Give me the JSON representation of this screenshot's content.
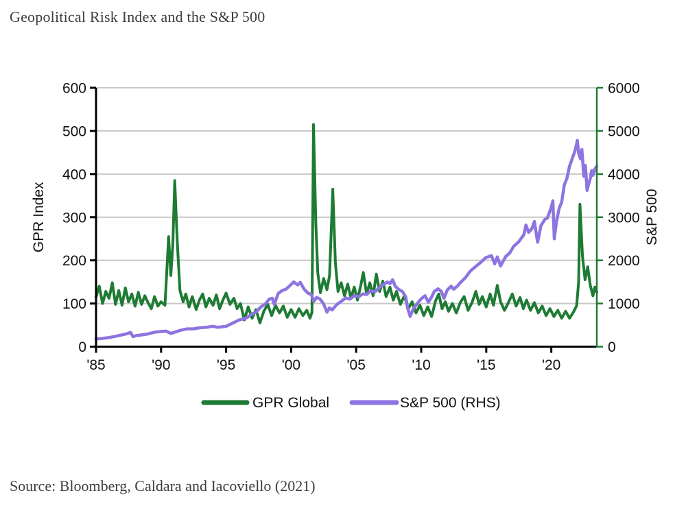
{
  "header": {
    "title": "Geopolitical Risk Index and the S&P 500"
  },
  "footer": {
    "source": "Source: Bloomberg, Caldara and Iacoviello (2021)"
  },
  "chart_data": {
    "type": "line",
    "title": "Geopolitical Risk Index and the S&P 500",
    "x_axis": {
      "range": [
        1985,
        2023.5
      ],
      "tick_years": [
        1985,
        1990,
        1995,
        2000,
        2005,
        2010,
        2015,
        2020
      ],
      "tick_labels": [
        "'85",
        "'90",
        "'95",
        "'00",
        "'05",
        "'10",
        "'15",
        "'20"
      ]
    },
    "left_axis": {
      "label": "GPR Index",
      "range": [
        0,
        600
      ],
      "ticks": [
        0,
        100,
        200,
        300,
        400,
        500,
        600
      ]
    },
    "right_axis": {
      "label": "S&P 500",
      "range": [
        0,
        6000
      ],
      "ticks": [
        0,
        1000,
        2000,
        3000,
        4000,
        5000,
        6000
      ]
    },
    "grid": true,
    "style": {
      "grid_color": "#c7c7c7",
      "spine_color": "#000000",
      "right_spine_color": "#1e7b33",
      "text_color": "#111111",
      "title_color": "#3d3d3d"
    },
    "legend": {
      "position": "bottom",
      "items": [
        {
          "label": "GPR Global",
          "color": "#1e7b33"
        },
        {
          "label": "S&P 500 (RHS)",
          "color": "#8d74e0"
        }
      ]
    },
    "series": [
      {
        "name": "GPR Global",
        "axis": "left",
        "color": "#1e7b33",
        "width": 4,
        "points": [
          [
            1985.0,
            115
          ],
          [
            1985.25,
            140
          ],
          [
            1985.5,
            100
          ],
          [
            1985.75,
            128
          ],
          [
            1986.0,
            112
          ],
          [
            1986.25,
            148
          ],
          [
            1986.5,
            98
          ],
          [
            1986.75,
            130
          ],
          [
            1987.0,
            96
          ],
          [
            1987.25,
            136
          ],
          [
            1987.5,
            104
          ],
          [
            1987.75,
            122
          ],
          [
            1988.0,
            94
          ],
          [
            1988.25,
            126
          ],
          [
            1988.5,
            98
          ],
          [
            1988.75,
            118
          ],
          [
            1989.0,
            102
          ],
          [
            1989.25,
            88
          ],
          [
            1989.5,
            116
          ],
          [
            1989.75,
            94
          ],
          [
            1990.0,
            104
          ],
          [
            1990.3,
            96
          ],
          [
            1990.58,
            255
          ],
          [
            1990.75,
            165
          ],
          [
            1990.9,
            235
          ],
          [
            1991.05,
            385
          ],
          [
            1991.25,
            240
          ],
          [
            1991.45,
            130
          ],
          [
            1991.7,
            104
          ],
          [
            1991.9,
            122
          ],
          [
            1992.15,
            92
          ],
          [
            1992.4,
            116
          ],
          [
            1992.7,
            86
          ],
          [
            1992.95,
            108
          ],
          [
            1993.2,
            122
          ],
          [
            1993.45,
            92
          ],
          [
            1993.7,
            112
          ],
          [
            1994.0,
            96
          ],
          [
            1994.25,
            120
          ],
          [
            1994.5,
            88
          ],
          [
            1994.75,
            108
          ],
          [
            1995.0,
            124
          ],
          [
            1995.3,
            98
          ],
          [
            1995.6,
            112
          ],
          [
            1995.85,
            88
          ],
          [
            1996.1,
            100
          ],
          [
            1996.4,
            62
          ],
          [
            1996.7,
            92
          ],
          [
            1997.0,
            66
          ],
          [
            1997.3,
            86
          ],
          [
            1997.6,
            55
          ],
          [
            1997.9,
            82
          ],
          [
            1998.2,
            98
          ],
          [
            1998.5,
            72
          ],
          [
            1998.8,
            96
          ],
          [
            1999.1,
            78
          ],
          [
            1999.4,
            94
          ],
          [
            1999.7,
            68
          ],
          [
            2000.0,
            86
          ],
          [
            2000.3,
            68
          ],
          [
            2000.6,
            88
          ],
          [
            2000.9,
            72
          ],
          [
            2001.2,
            84
          ],
          [
            2001.45,
            66
          ],
          [
            2001.6,
            80
          ],
          [
            2001.72,
            515
          ],
          [
            2001.9,
            285
          ],
          [
            2002.05,
            170
          ],
          [
            2002.25,
            125
          ],
          [
            2002.5,
            158
          ],
          [
            2002.75,
            132
          ],
          [
            2002.95,
            165
          ],
          [
            2003.2,
            365
          ],
          [
            2003.4,
            195
          ],
          [
            2003.6,
            128
          ],
          [
            2003.85,
            148
          ],
          [
            2004.1,
            118
          ],
          [
            2004.35,
            145
          ],
          [
            2004.6,
            112
          ],
          [
            2004.85,
            138
          ],
          [
            2005.1,
            108
          ],
          [
            2005.35,
            142
          ],
          [
            2005.55,
            172
          ],
          [
            2005.8,
            122
          ],
          [
            2006.05,
            148
          ],
          [
            2006.3,
            118
          ],
          [
            2006.55,
            168
          ],
          [
            2006.8,
            128
          ],
          [
            2007.05,
            152
          ],
          [
            2007.3,
            116
          ],
          [
            2007.6,
            138
          ],
          [
            2007.85,
            108
          ],
          [
            2008.1,
            128
          ],
          [
            2008.4,
            98
          ],
          [
            2008.7,
            118
          ],
          [
            2009.0,
            88
          ],
          [
            2009.3,
            104
          ],
          [
            2009.6,
            78
          ],
          [
            2009.9,
            96
          ],
          [
            2010.2,
            72
          ],
          [
            2010.5,
            92
          ],
          [
            2010.8,
            70
          ],
          [
            2011.1,
            106
          ],
          [
            2011.35,
            122
          ],
          [
            2011.6,
            88
          ],
          [
            2011.85,
            104
          ],
          [
            2012.1,
            82
          ],
          [
            2012.4,
            100
          ],
          [
            2012.7,
            78
          ],
          [
            2013.0,
            102
          ],
          [
            2013.3,
            116
          ],
          [
            2013.6,
            84
          ],
          [
            2013.9,
            102
          ],
          [
            2014.2,
            128
          ],
          [
            2014.45,
            98
          ],
          [
            2014.7,
            116
          ],
          [
            2015.0,
            92
          ],
          [
            2015.3,
            122
          ],
          [
            2015.55,
            96
          ],
          [
            2015.85,
            142
          ],
          [
            2016.1,
            104
          ],
          [
            2016.4,
            84
          ],
          [
            2016.7,
            102
          ],
          [
            2017.0,
            122
          ],
          [
            2017.3,
            94
          ],
          [
            2017.6,
            114
          ],
          [
            2017.85,
            88
          ],
          [
            2018.1,
            108
          ],
          [
            2018.4,
            84
          ],
          [
            2018.7,
            102
          ],
          [
            2019.0,
            78
          ],
          [
            2019.3,
            94
          ],
          [
            2019.6,
            72
          ],
          [
            2019.9,
            88
          ],
          [
            2020.2,
            70
          ],
          [
            2020.5,
            84
          ],
          [
            2020.8,
            66
          ],
          [
            2021.1,
            82
          ],
          [
            2021.4,
            66
          ],
          [
            2021.7,
            80
          ],
          [
            2021.95,
            95
          ],
          [
            2022.1,
            150
          ],
          [
            2022.2,
            330
          ],
          [
            2022.4,
            210
          ],
          [
            2022.6,
            155
          ],
          [
            2022.8,
            185
          ],
          [
            2023.0,
            142
          ],
          [
            2023.2,
            118
          ],
          [
            2023.35,
            138
          ],
          [
            2023.5,
            126
          ]
        ]
      },
      {
        "name": "S&P 500 (RHS)",
        "axis": "right",
        "color": "#8d74e0",
        "width": 4.5,
        "points": [
          [
            1985.0,
            180
          ],
          [
            1985.5,
            190
          ],
          [
            1986.0,
            212
          ],
          [
            1986.5,
            240
          ],
          [
            1987.0,
            274
          ],
          [
            1987.4,
            300
          ],
          [
            1987.65,
            330
          ],
          [
            1987.85,
            230
          ],
          [
            1988.1,
            258
          ],
          [
            1988.5,
            272
          ],
          [
            1989.0,
            294
          ],
          [
            1989.5,
            335
          ],
          [
            1990.0,
            352
          ],
          [
            1990.4,
            360
          ],
          [
            1990.75,
            306
          ],
          [
            1991.0,
            330
          ],
          [
            1991.5,
            380
          ],
          [
            1992.0,
            412
          ],
          [
            1992.5,
            414
          ],
          [
            1993.0,
            438
          ],
          [
            1993.5,
            450
          ],
          [
            1994.0,
            472
          ],
          [
            1994.35,
            448
          ],
          [
            1994.75,
            462
          ],
          [
            1995.0,
            470
          ],
          [
            1995.5,
            545
          ],
          [
            1996.0,
            618
          ],
          [
            1996.4,
            650
          ],
          [
            1996.6,
            670
          ],
          [
            1997.0,
            760
          ],
          [
            1997.3,
            800
          ],
          [
            1997.6,
            900
          ],
          [
            1997.8,
            947
          ],
          [
            1998.0,
            980
          ],
          [
            1998.3,
            1100
          ],
          [
            1998.55,
            1120
          ],
          [
            1998.7,
            980
          ],
          [
            1999.0,
            1230
          ],
          [
            1999.3,
            1300
          ],
          [
            1999.6,
            1330
          ],
          [
            1999.85,
            1400
          ],
          [
            2000.2,
            1500
          ],
          [
            2000.5,
            1430
          ],
          [
            2000.7,
            1490
          ],
          [
            2001.0,
            1330
          ],
          [
            2001.3,
            1240
          ],
          [
            2001.55,
            1210
          ],
          [
            2001.75,
            1050
          ],
          [
            2001.95,
            1140
          ],
          [
            2002.2,
            1110
          ],
          [
            2002.5,
            990
          ],
          [
            2002.75,
            800
          ],
          [
            2002.95,
            900
          ],
          [
            2003.15,
            850
          ],
          [
            2003.5,
            975
          ],
          [
            2003.85,
            1050
          ],
          [
            2004.2,
            1130
          ],
          [
            2004.5,
            1100
          ],
          [
            2004.85,
            1180
          ],
          [
            2005.2,
            1160
          ],
          [
            2005.5,
            1220
          ],
          [
            2005.8,
            1210
          ],
          [
            2006.1,
            1290
          ],
          [
            2006.45,
            1270
          ],
          [
            2006.8,
            1380
          ],
          [
            2007.1,
            1440
          ],
          [
            2007.4,
            1500
          ],
          [
            2007.6,
            1460
          ],
          [
            2007.8,
            1550
          ],
          [
            2008.0,
            1400
          ],
          [
            2008.3,
            1320
          ],
          [
            2008.55,
            1280
          ],
          [
            2008.8,
            1160
          ],
          [
            2008.95,
            900
          ],
          [
            2009.15,
            700
          ],
          [
            2009.4,
            880
          ],
          [
            2009.7,
            1000
          ],
          [
            2010.0,
            1110
          ],
          [
            2010.3,
            1180
          ],
          [
            2010.55,
            1030
          ],
          [
            2010.8,
            1150
          ],
          [
            2011.0,
            1280
          ],
          [
            2011.3,
            1340
          ],
          [
            2011.55,
            1280
          ],
          [
            2011.75,
            1120
          ],
          [
            2012.0,
            1310
          ],
          [
            2012.3,
            1400
          ],
          [
            2012.5,
            1330
          ],
          [
            2012.8,
            1410
          ],
          [
            2013.0,
            1480
          ],
          [
            2013.4,
            1600
          ],
          [
            2013.8,
            1760
          ],
          [
            2014.2,
            1860
          ],
          [
            2014.6,
            1960
          ],
          [
            2014.95,
            2060
          ],
          [
            2015.4,
            2110
          ],
          [
            2015.65,
            1920
          ],
          [
            2015.85,
            2080
          ],
          [
            2016.1,
            1870
          ],
          [
            2016.5,
            2090
          ],
          [
            2016.8,
            2170
          ],
          [
            2017.1,
            2320
          ],
          [
            2017.5,
            2430
          ],
          [
            2017.9,
            2600
          ],
          [
            2018.05,
            2820
          ],
          [
            2018.25,
            2650
          ],
          [
            2018.5,
            2730
          ],
          [
            2018.7,
            2900
          ],
          [
            2018.95,
            2420
          ],
          [
            2019.2,
            2800
          ],
          [
            2019.5,
            2950
          ],
          [
            2019.7,
            2980
          ],
          [
            2020.0,
            3230
          ],
          [
            2020.12,
            3380
          ],
          [
            2020.23,
            2500
          ],
          [
            2020.4,
            2900
          ],
          [
            2020.6,
            3200
          ],
          [
            2020.8,
            3350
          ],
          [
            2021.0,
            3750
          ],
          [
            2021.2,
            3900
          ],
          [
            2021.4,
            4180
          ],
          [
            2021.6,
            4350
          ],
          [
            2021.8,
            4520
          ],
          [
            2021.95,
            4700
          ],
          [
            2022.0,
            4780
          ],
          [
            2022.1,
            4480
          ],
          [
            2022.25,
            4350
          ],
          [
            2022.35,
            4570
          ],
          [
            2022.5,
            3950
          ],
          [
            2022.62,
            4200
          ],
          [
            2022.75,
            3620
          ],
          [
            2022.85,
            3750
          ],
          [
            2023.0,
            3900
          ],
          [
            2023.1,
            4080
          ],
          [
            2023.2,
            3970
          ],
          [
            2023.35,
            4120
          ],
          [
            2023.5,
            4180
          ]
        ]
      }
    ]
  }
}
